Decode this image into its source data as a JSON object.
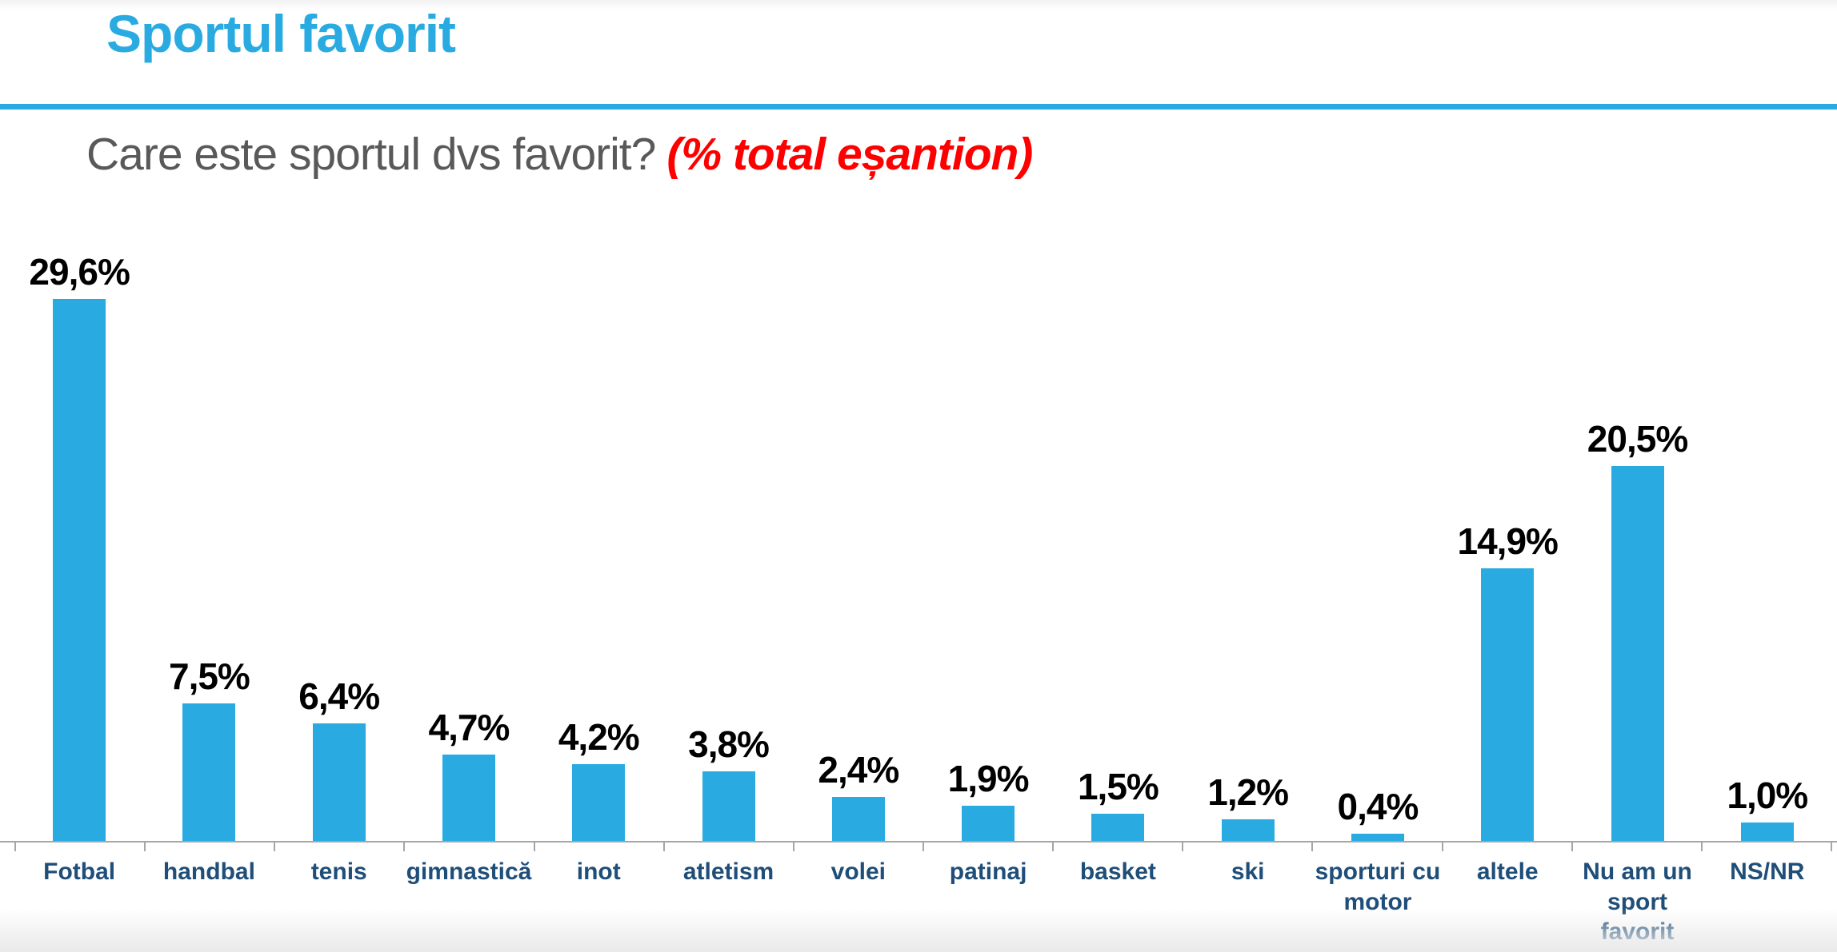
{
  "page": {
    "title": "Sportul favorit",
    "subtitle_question": "Care este sportul dvs favorit?",
    "subtitle_note": "(% total eșantion)"
  },
  "colors": {
    "accent_blue": "#29ABE2",
    "title_blue": "#29ABE2",
    "divider_blue": "#29ABE2",
    "subtitle_gray": "#595959",
    "note_red": "#FF0000",
    "value_label_black": "#000000",
    "category_navy": "#1F4E79",
    "axis_gray": "#A6A6A6"
  },
  "chart_data": {
    "type": "bar",
    "title": "Care este sportul dvs favorit? (% total eșantion)",
    "xlabel": "",
    "ylabel": "",
    "ylim": [
      0,
      30
    ],
    "grid": false,
    "legend": false,
    "data_label_position": "outside-end",
    "decimal_separator": ",",
    "bar_color": "#29ABE2",
    "categories": [
      "Fotbal",
      "handbal",
      "tenis",
      "gimnastică",
      "inot",
      "atletism",
      "volei",
      "patinaj",
      "basket",
      "ski",
      "sporturi cu motor",
      "altele",
      "Nu am un sport favorit",
      "NS/NR"
    ],
    "values": [
      29.6,
      7.5,
      6.4,
      4.7,
      4.2,
      3.8,
      2.4,
      1.9,
      1.5,
      1.2,
      0.4,
      14.9,
      20.5,
      1.0
    ],
    "labels": [
      "29,6%",
      "7,5%",
      "6,4%",
      "4,7%",
      "4,2%",
      "3,8%",
      "2,4%",
      "1,9%",
      "1,5%",
      "1,2%",
      "0,4%",
      "14,9%",
      "20,5%",
      "1,0%"
    ]
  }
}
